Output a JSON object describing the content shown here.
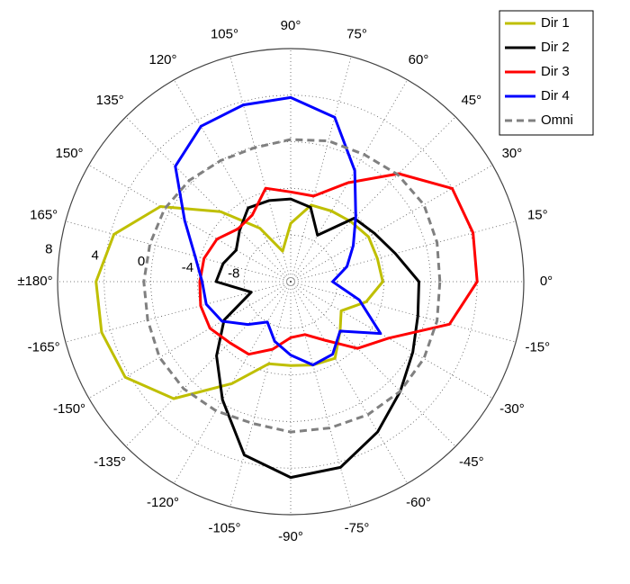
{
  "chart_data": {
    "type": "polar",
    "theta": [
      0,
      15,
      30,
      45,
      60,
      75,
      90,
      105,
      120,
      135,
      150,
      165,
      180,
      195,
      210,
      225,
      240,
      255,
      270,
      285,
      300,
      315,
      330,
      345
    ],
    "series": [
      {
        "name": "Dir 1",
        "color": "#bfbf00",
        "line_style": "solid",
        "values": [
          -4.1,
          -4.3,
          -4.3,
          -4.7,
          -5,
          -5.2,
          -7,
          -9.3,
          -6.7,
          -3.5,
          0.9,
          3.7,
          4.7,
          4.8,
          4.4,
          2.2,
          -1.9,
          -4.7,
          -4.8,
          -4.6,
          -4.4,
          -6,
          -7,
          -5.3
        ]
      },
      {
        "name": "Dir 2",
        "color": "#000000",
        "line_style": "solid",
        "values": [
          -1,
          -2.7,
          -3.7,
          -4.3,
          -7.4,
          -5.4,
          -4.9,
          -4.8,
          -4.7,
          -5.8,
          -6.6,
          -6,
          -5.6,
          -8.5,
          -5.4,
          -3,
          -0.3,
          3.4,
          4.8,
          4.5,
          2.9,
          1.3,
          0.1,
          -0.7
        ]
      },
      {
        "name": "Dir 3",
        "color": "#ff0000",
        "line_style": "solid",
        "values": [
          4,
          4.2,
          4,
          1.1,
          -2.2,
          -4.4,
          -4.3,
          -3.7,
          -5.4,
          -5.6,
          -4.7,
          -4.3,
          -4.2,
          -4,
          -4,
          -4.6,
          -4.8,
          -6,
          -7.2,
          -7.3,
          -6.2,
          -3.9,
          -2.3,
          2.1
        ]
      },
      {
        "name": "Dir 4",
        "color": "#0000ff",
        "line_style": "solid",
        "values": [
          -8.4,
          -7,
          -5.8,
          -4.1,
          -1,
          2.6,
          3.8,
          3.7,
          3.4,
          2,
          -1.5,
          -3.5,
          -4.4,
          -4.5,
          -5.2,
          -6.8,
          -8,
          -6.7,
          -5.7,
          -4.6,
          -4.8,
          -6,
          -3.1,
          -5.9
        ]
      },
      {
        "name": "Omni",
        "color": "#808080",
        "line_style": "dashed",
        "values": [
          0.8,
          1,
          1.2,
          1,
          0.6,
          0.5,
          0.2,
          -0.1,
          0,
          0.3,
          0.5,
          0.5,
          0.6,
          0.7,
          1,
          1,
          0.8,
          0.6,
          0.9,
          1,
          1.2,
          1.3,
          1.2,
          1
        ]
      }
    ],
    "rlim": [
      -12,
      8
    ],
    "rticks": [
      -8,
      -4,
      0,
      4,
      8
    ],
    "thetaticks": [
      {
        "value": 0,
        "label": "0°"
      },
      {
        "value": 15,
        "label": "15°"
      },
      {
        "value": 30,
        "label": "30°"
      },
      {
        "value": 45,
        "label": "45°"
      },
      {
        "value": 60,
        "label": "60°"
      },
      {
        "value": 75,
        "label": "75°"
      },
      {
        "value": 90,
        "label": "90°"
      },
      {
        "value": 105,
        "label": "105°"
      },
      {
        "value": 120,
        "label": "120°"
      },
      {
        "value": 135,
        "label": "135°"
      },
      {
        "value": 150,
        "label": "150°"
      },
      {
        "value": 165,
        "label": "165°"
      },
      {
        "value": 180,
        "label": "±180°"
      },
      {
        "value": 195,
        "label": "-165°"
      },
      {
        "value": 210,
        "label": "-150°"
      },
      {
        "value": 225,
        "label": "-135°"
      },
      {
        "value": 240,
        "label": "-120°"
      },
      {
        "value": 255,
        "label": "-105°"
      },
      {
        "value": 270,
        "label": "-90°"
      },
      {
        "value": 285,
        "label": "-75°"
      },
      {
        "value": 300,
        "label": "-60°"
      },
      {
        "value": 315,
        "label": "-45°"
      },
      {
        "value": 330,
        "label": "-30°"
      },
      {
        "value": 345,
        "label": "-15°"
      }
    ],
    "grid": true,
    "legend": "upper right"
  }
}
